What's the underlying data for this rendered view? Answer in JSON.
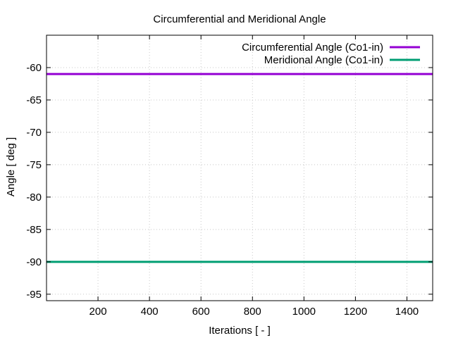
{
  "chart_data": {
    "type": "line",
    "title": "Circumferential and Meridional Angle",
    "xlabel": "Iterations [ - ]",
    "ylabel": "Angle [ deg ]",
    "xlim": [
      0,
      1500
    ],
    "ylim": [
      -96,
      -55
    ],
    "x_ticks": [
      200,
      400,
      600,
      800,
      1000,
      1200,
      1400
    ],
    "y_ticks": [
      -60,
      -65,
      -70,
      -75,
      -80,
      -85,
      -90,
      -95
    ],
    "grid": true,
    "legend_position": "top-right",
    "series": [
      {
        "name": "Circumferential Angle (Co1-in)",
        "color": "#9400d3",
        "x": [
          0,
          1500
        ],
        "y": [
          -61,
          -61
        ]
      },
      {
        "name": "Meridional Angle (Co1-in)",
        "color": "#009e73",
        "x": [
          0,
          1500
        ],
        "y": [
          -90,
          -90
        ]
      }
    ]
  }
}
